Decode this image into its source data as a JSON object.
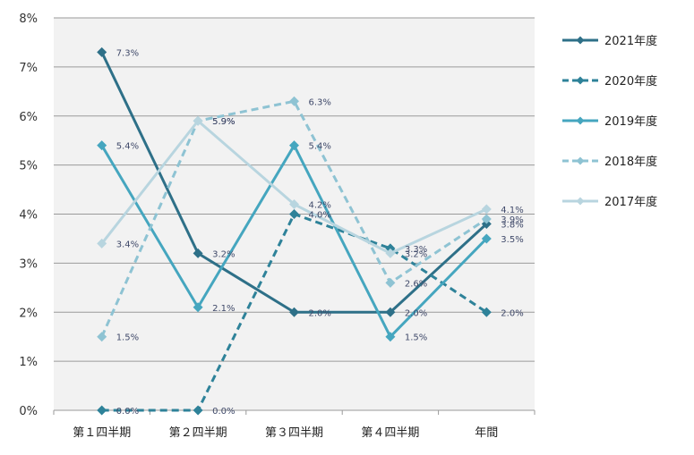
{
  "chart_data": {
    "type": "line",
    "categories": [
      "第１四半期",
      "第２四半期",
      "第３四半期",
      "第４四半期",
      "年間"
    ],
    "ylim": [
      0,
      8
    ],
    "yticks": [
      "0%",
      "1%",
      "2%",
      "3%",
      "4%",
      "5%",
      "6%",
      "7%",
      "8%"
    ],
    "grid": true,
    "legend_position": "right",
    "series": [
      {
        "name": "2021年度",
        "values": [
          7.3,
          3.2,
          2.0,
          2.0,
          3.8
        ],
        "labels": [
          "7.3%",
          "3.2%",
          "2.0%",
          "2.0%",
          "3.8%"
        ],
        "color": "#2e7088",
        "dashed": false
      },
      {
        "name": "2020年度",
        "values": [
          0.0,
          0.0,
          4.0,
          3.3,
          2.0
        ],
        "labels": [
          "0.0%",
          "0.0%",
          "4.0%",
          "3.3%",
          "2.0%"
        ],
        "color": "#2e8299",
        "dashed": true
      },
      {
        "name": "2019年度",
        "values": [
          5.4,
          2.1,
          5.4,
          1.5,
          3.5
        ],
        "labels": [
          "5.4%",
          "2.1%",
          "5.4%",
          "1.5%",
          "3.5%"
        ],
        "color": "#45a6bf",
        "dashed": false
      },
      {
        "name": "2018年度",
        "values": [
          1.5,
          5.9,
          6.3,
          2.6,
          3.9
        ],
        "labels": [
          "1.5%",
          "5.9%",
          "6.3%",
          "2.6%",
          "3.9%"
        ],
        "color": "#8ec3d3",
        "dashed": true
      },
      {
        "name": "2017年度",
        "values": [
          3.4,
          5.9,
          4.2,
          3.2,
          4.1
        ],
        "labels": [
          "3.4%",
          "5.9%",
          "4.2%",
          "3.2%",
          "4.1%"
        ],
        "color": "#b8d5df",
        "dashed": false
      }
    ]
  }
}
